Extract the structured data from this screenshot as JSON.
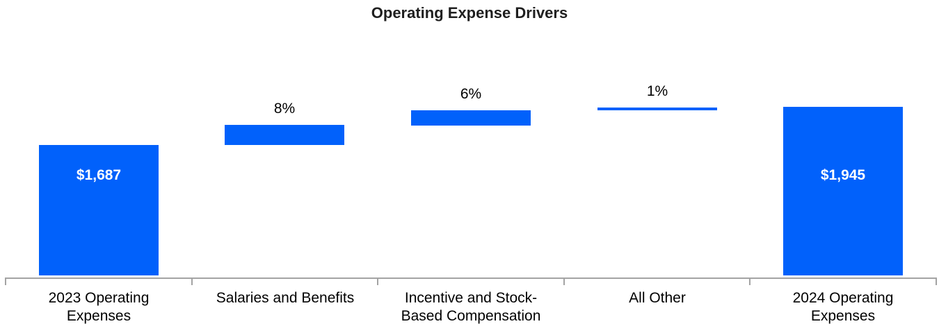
{
  "chart_data": {
    "type": "bar",
    "subtype": "waterfall",
    "title": "Operating Expense Drivers",
    "xlabel": "",
    "ylabel": "",
    "grid": false,
    "legend_position": "none",
    "ylim": [
      800,
      2000
    ],
    "bar_color": "#0161FB",
    "axis_color": "#A3A3A3",
    "inside_label_color": "#FFFFFF",
    "outside_label_color": "#000000",
    "baseline_total_value": 1687,
    "categories": [
      "2023 Operating\nExpenses",
      "Salaries and Benefits",
      "Incentive and Stock-\nBased Compensation",
      "All Other",
      "2024 Operating\nExpenses"
    ],
    "bars": [
      {
        "category": "2023 Operating Expenses",
        "kind": "total",
        "value": 1687,
        "data_label": "$1,687",
        "label_placement": "inside"
      },
      {
        "category": "Salaries and Benefits",
        "kind": "increase",
        "pct": 8,
        "data_label": "8%",
        "label_placement": "above"
      },
      {
        "category": "Incentive and Stock-Based Compensation",
        "kind": "increase",
        "pct": 6,
        "data_label": "6%",
        "label_placement": "above"
      },
      {
        "category": "All Other",
        "kind": "increase",
        "pct": 1,
        "data_label": "1%",
        "label_placement": "above"
      },
      {
        "category": "2024 Operating Expenses",
        "kind": "total",
        "value": 1945,
        "data_label": "$1,945",
        "label_placement": "inside"
      }
    ]
  }
}
